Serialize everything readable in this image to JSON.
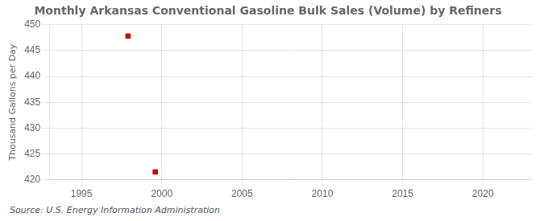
{
  "chart_data": {
    "type": "scatter",
    "title": "Monthly Arkansas Conventional Gasoline Bulk Sales (Volume) by Refiners",
    "ylabel": "Thousand Gallons per Day",
    "annotations": [
      "Source: U.S. Energy Information Administration"
    ],
    "x": [
      1997.9,
      1999.6
    ],
    "values": [
      447.8,
      421.5
    ],
    "color": "#cc0000",
    "marker": "square",
    "xlim": [
      1993,
      2023
    ],
    "xticks": [
      1995,
      2000,
      2005,
      2010,
      2015,
      2020
    ],
    "ylim": [
      420,
      450
    ],
    "yticks": [
      420,
      425,
      430,
      435,
      440,
      445,
      450
    ],
    "grid": true
  }
}
